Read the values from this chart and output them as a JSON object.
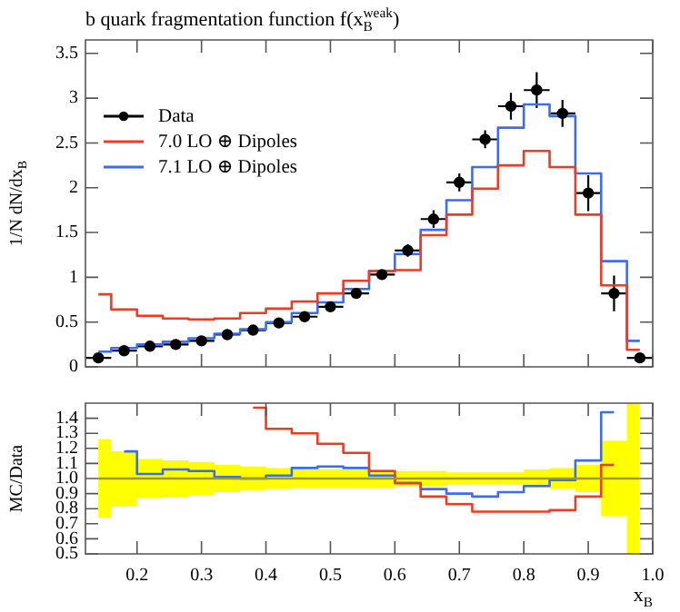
{
  "chart_data": [
    {
      "type": "step",
      "title": "b quark fragmentation function f(x$_{B}$$^{weak}$)",
      "ylabel": "1/N dN/dx$_{B}$",
      "x": [
        0.14,
        0.18,
        0.22,
        0.26,
        0.3,
        0.34,
        0.38,
        0.42,
        0.46,
        0.5,
        0.54,
        0.58,
        0.62,
        0.66,
        0.7,
        0.74,
        0.78,
        0.82,
        0.86,
        0.9,
        0.94,
        0.98
      ],
      "series": [
        {
          "name": "Data",
          "type": "scatter",
          "marker": "circle",
          "color": "#000000",
          "values": [
            0.1,
            0.18,
            0.23,
            0.25,
            0.29,
            0.36,
            0.41,
            0.49,
            0.56,
            0.67,
            0.82,
            1.03,
            1.3,
            1.65,
            2.06,
            2.54,
            2.91,
            3.09,
            2.83,
            1.94,
            0.82,
            0.1
          ],
          "errors": [
            0.03,
            0.02,
            0.02,
            0.02,
            0.02,
            0.02,
            0.02,
            0.02,
            0.03,
            0.03,
            0.04,
            0.05,
            0.07,
            0.1,
            0.1,
            0.1,
            0.15,
            0.2,
            0.15,
            0.2,
            0.2,
            0.05
          ],
          "xerrors": [
            0.02,
            0.02,
            0.02,
            0.02,
            0.02,
            0.02,
            0.02,
            0.02,
            0.02,
            0.02,
            0.02,
            0.02,
            0.02,
            0.02,
            0.02,
            0.02,
            0.02,
            0.02,
            0.02,
            0.02,
            0.02,
            0.02
          ]
        },
        {
          "name": "7.0 LO ⊕ Dipoles",
          "color": "#ee3b24",
          "values": [
            0.81,
            0.64,
            0.57,
            0.54,
            0.53,
            0.54,
            0.6,
            0.65,
            0.73,
            0.82,
            0.96,
            1.07,
            1.08,
            1.47,
            1.7,
            1.99,
            2.25,
            2.41,
            2.23,
            1.7,
            0.91,
            0.19
          ]
        },
        {
          "name": "7.1 LO ⊕ Dipoles",
          "color": "#3c6cf0",
          "values": [
            0.17,
            0.21,
            0.25,
            0.28,
            0.32,
            0.37,
            0.42,
            0.5,
            0.6,
            0.72,
            0.87,
            1.07,
            1.26,
            1.53,
            1.86,
            2.23,
            2.67,
            2.93,
            2.8,
            2.16,
            1.18,
            0.29
          ]
        }
      ],
      "xlim": [
        0.12,
        1.0
      ],
      "xticks": [
        0.2,
        0.3,
        0.4,
        0.5,
        0.6,
        0.7,
        0.8,
        0.9,
        1
      ],
      "ylim": [
        0,
        3.65
      ],
      "yticks": [
        0,
        0.5,
        1,
        1.5,
        2,
        2.5,
        3,
        3.5
      ],
      "tick_labels": "y",
      "legend": "top left",
      "grid": false
    },
    {
      "type": "step",
      "ylabel": "MC/Data",
      "xlabel": "x$_{B}$",
      "x": [
        0.14,
        0.18,
        0.22,
        0.26,
        0.3,
        0.34,
        0.38,
        0.42,
        0.46,
        0.5,
        0.54,
        0.58,
        0.62,
        0.66,
        0.7,
        0.74,
        0.78,
        0.82,
        0.86,
        0.9,
        0.94,
        0.98
      ],
      "series": [
        {
          "color": "#9c9c2e",
          "values": [
            1,
            1,
            1,
            1,
            1,
            1,
            1,
            1,
            1,
            1,
            1,
            1,
            1,
            1,
            1,
            1,
            1,
            1,
            1,
            1,
            1,
            1
          ],
          "lower": [
            0.74,
            0.82,
            0.87,
            0.88,
            0.89,
            0.91,
            0.92,
            0.93,
            0.94,
            0.94,
            0.94,
            0.94,
            0.95,
            0.95,
            0.96,
            0.96,
            0.96,
            0.94,
            0.93,
            0.91,
            0.75,
            0.5
          ],
          "upper": [
            1.26,
            1.18,
            1.13,
            1.12,
            1.11,
            1.09,
            1.08,
            1.07,
            1.06,
            1.06,
            1.06,
            1.06,
            1.05,
            1.05,
            1.04,
            1.04,
            1.04,
            1.06,
            1.07,
            1.09,
            1.25,
            1.5
          ]
        },
        {
          "color": "#ee3b24",
          "values": [
            null,
            null,
            null,
            null,
            null,
            null,
            1.47,
            1.33,
            1.3,
            1.23,
            1.17,
            1.05,
            0.97,
            0.88,
            0.83,
            0.78,
            0.78,
            0.78,
            0.79,
            0.88,
            1.09,
            null
          ]
        },
        {
          "color": "#3c6cf0",
          "values": [
            null,
            1.18,
            1.03,
            1.06,
            1.05,
            1.01,
            1.0,
            1.02,
            1.07,
            1.08,
            1.07,
            1.02,
            0.97,
            0.93,
            0.9,
            0.88,
            0.91,
            0.95,
            0.99,
            1.12,
            1.44,
            null
          ]
        }
      ],
      "xlim": [
        0.12,
        1.0
      ],
      "xticks": [
        0.2,
        0.3,
        0.4,
        0.5,
        0.6,
        0.7,
        0.8,
        0.9,
        {
          "value": 1,
          "label": "1.0"
        }
      ],
      "ylim": [
        0.5,
        1.5
      ],
      "yticks": [
        0.5,
        0.6,
        0.7,
        0.8,
        0.9,
        {
          "value": 1,
          "label": "1.0"
        },
        1.1,
        1.2,
        1.3,
        1.4
      ],
      "grid": false
    }
  ]
}
